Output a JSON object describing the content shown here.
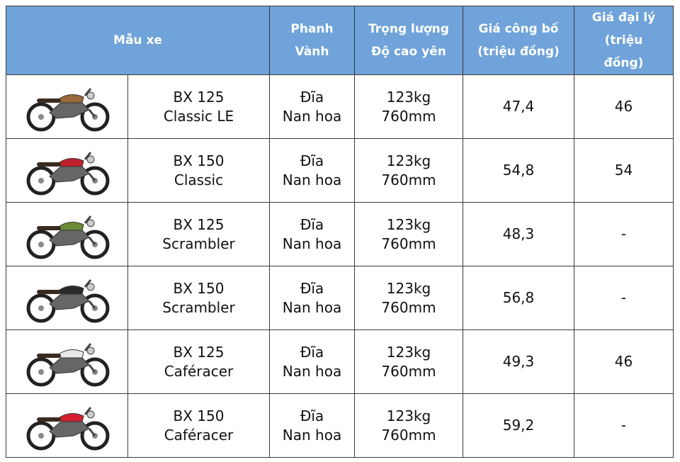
{
  "header": {
    "model": "Mẫu xe",
    "brake": [
      "Phanh",
      "Vành"
    ],
    "weight": [
      "Trọng lượng",
      "Độ cao yên"
    ],
    "list_price": [
      "Giá công bố",
      "(triệu đồng)"
    ],
    "dealer_price": [
      "Giá đại lý",
      "(triệu",
      "đồng)"
    ]
  },
  "rows": [
    {
      "model": [
        "BX 125",
        "Classic LE"
      ],
      "brake": [
        "Đĩa",
        "Nan hoa"
      ],
      "weight": [
        "123kg",
        "760mm"
      ],
      "list_price": "47,4",
      "dealer_price": "46"
    },
    {
      "model": [
        "BX 150",
        "Classic"
      ],
      "brake": [
        "Đĩa",
        "Nan hoa"
      ],
      "weight": [
        "123kg",
        "760mm"
      ],
      "list_price": "54,8",
      "dealer_price": "54"
    },
    {
      "model": [
        "BX 125",
        "Scrambler"
      ],
      "brake": [
        "Đĩa",
        "Nan hoa"
      ],
      "weight": [
        "123kg",
        "760mm"
      ],
      "list_price": "48,3",
      "dealer_price": "-"
    },
    {
      "model": [
        "BX 150",
        "Scrambler"
      ],
      "brake": [
        "Đĩa",
        "Nan hoa"
      ],
      "weight": [
        "123kg",
        "760mm"
      ],
      "list_price": "56,8",
      "dealer_price": "-"
    },
    {
      "model": [
        "BX 125",
        "Caféracer"
      ],
      "brake": [
        "Đĩa",
        "Nan hoa"
      ],
      "weight": [
        "123kg",
        "760mm"
      ],
      "list_price": "49,3",
      "dealer_price": "46"
    },
    {
      "model": [
        "BX 150",
        "Caféracer"
      ],
      "brake": [
        "Đĩa",
        "Nan hoa"
      ],
      "weight": [
        "123kg",
        "760mm"
      ],
      "list_price": "59,2",
      "dealer_price": "-"
    }
  ]
}
